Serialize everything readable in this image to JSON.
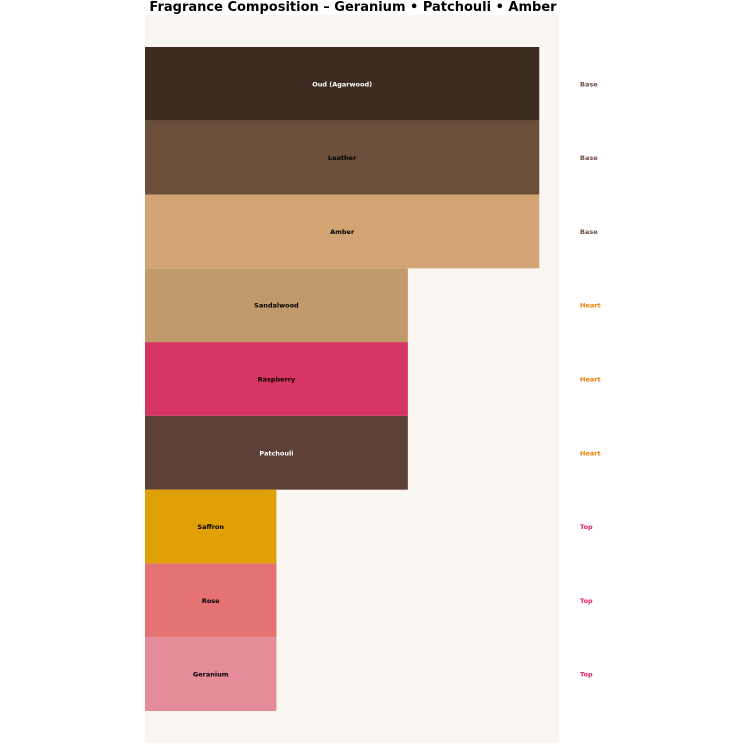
{
  "chart_data": {
    "type": "bar",
    "orientation": "horizontal",
    "title": "Fragrance Composition – Geranium • Patchouli • Amber",
    "xlabel": "",
    "ylabel": "",
    "grid": false,
    "axes_visible": false,
    "background": "#faf7f2",
    "xlim": [
      0,
      3.15
    ],
    "bars": [
      {
        "label": "Oud (Agarwood)",
        "value": 3,
        "tier": "Base",
        "color": "#3e2c20",
        "text_color": "#ffffff"
      },
      {
        "label": "Leather",
        "value": 3,
        "tier": "Base",
        "color": "#6b4f3a",
        "text_color": "#000000"
      },
      {
        "label": "Amber",
        "value": 3,
        "tier": "Base",
        "color": "#d4a574",
        "text_color": "#000000"
      },
      {
        "label": "Sandalwood",
        "value": 2,
        "tier": "Heart",
        "color": "#c19a6b",
        "text_color": "#000000"
      },
      {
        "label": "Raspberry",
        "value": 2,
        "tier": "Heart",
        "color": "#d63461",
        "text_color": "#000000"
      },
      {
        "label": "Patchouli",
        "value": 2,
        "tier": "Heart",
        "color": "#5d4037",
        "text_color": "#ffffff"
      },
      {
        "label": "Saffron",
        "value": 1,
        "tier": "Top",
        "color": "#e0a106",
        "text_color": "#000000"
      },
      {
        "label": "Rose",
        "value": 1,
        "tier": "Top",
        "color": "#e57373",
        "text_color": "#000000"
      },
      {
        "label": "Geranium",
        "value": 1,
        "tier": "Top",
        "color": "#e48c9a",
        "text_color": "#000000"
      }
    ],
    "tier_colors": {
      "Base": "#6d4c41",
      "Heart": "#f57c00",
      "Top": "#e91e63"
    }
  }
}
